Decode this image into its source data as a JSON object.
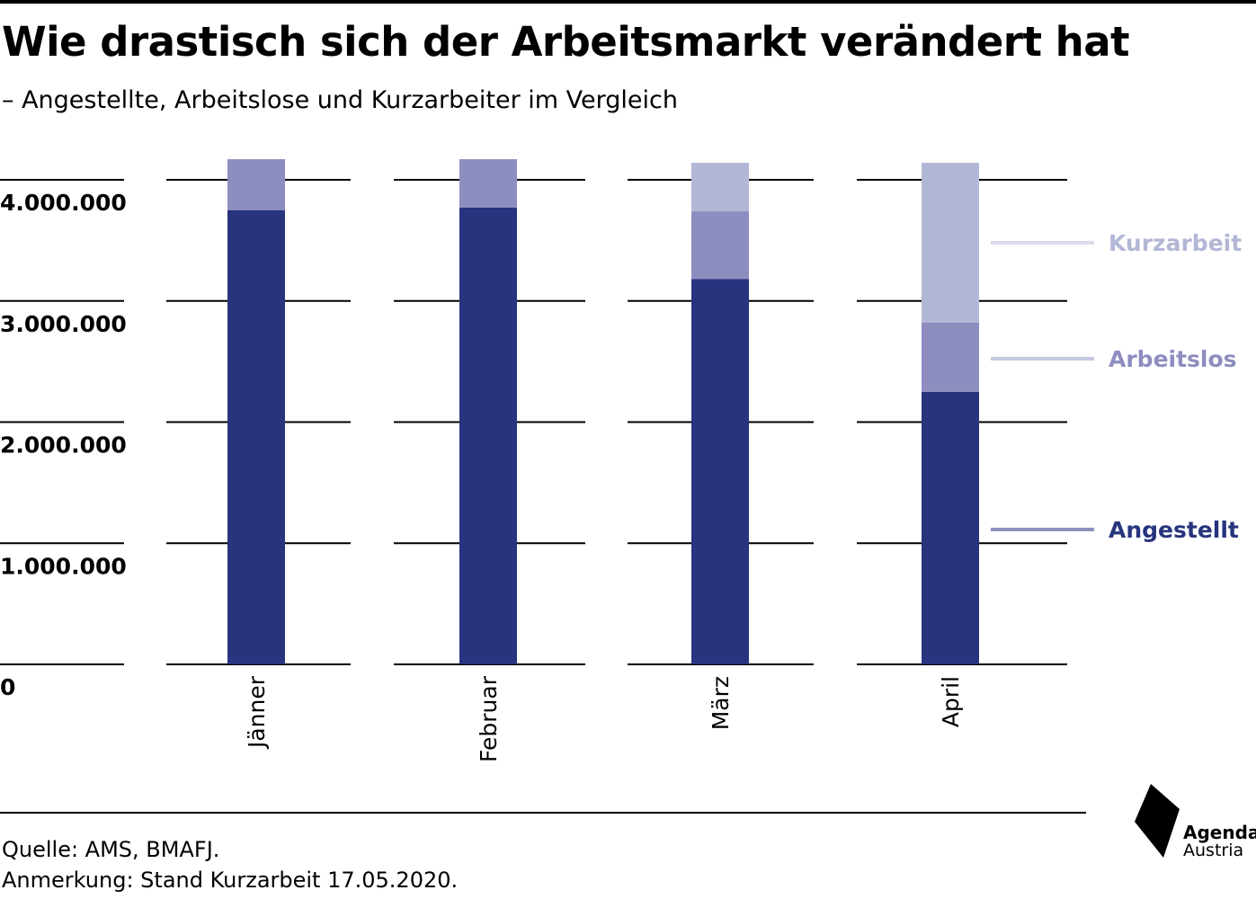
{
  "header": {
    "title": "Wie drastisch sich der Arbeitsmarkt verändert hat",
    "subtitle": "– Angestellte, Arbeitslose und Kurzarbeiter im Vergleich"
  },
  "footer": {
    "source": "Quelle: AMS, BMAFJ.",
    "note": "Anmerkung: Stand Kurzarbeit 17.05.2020."
  },
  "logo": {
    "line1": "Agenda",
    "line2": "Austria"
  },
  "colors": {
    "angestellt": "#27347e",
    "arbeitslos": "#8e8dc0",
    "kurzarbeit": "#b3b7d6",
    "legend_angestellt_text": "#27347e",
    "legend_arbeitslos_text": "#8e8dc0",
    "legend_kurzarbeit_text": "#b3b7d6"
  },
  "chart_data": {
    "type": "bar",
    "stacked": true,
    "orientation": "vertical",
    "categories": [
      "Jänner",
      "Februar",
      "März",
      "April"
    ],
    "series": [
      {
        "name": "Angestellt",
        "values": [
          3750000,
          3770000,
          3180000,
          2250000
        ]
      },
      {
        "name": "Arbeitslos",
        "values": [
          420000,
          400000,
          560000,
          570000
        ]
      },
      {
        "name": "Kurzarbeit",
        "values": [
          0,
          0,
          400000,
          1320000
        ]
      }
    ],
    "ylim": [
      0,
      4000000
    ],
    "yticks": [
      {
        "value": 0,
        "label": "0"
      },
      {
        "value": 1000000,
        "label": "1.000.000"
      },
      {
        "value": 2000000,
        "label": "2.000.000"
      },
      {
        "value": 3000000,
        "label": "3.000.000"
      },
      {
        "value": 4000000,
        "label": "4.000.000"
      }
    ],
    "grid": true,
    "legend": "right, inline labels",
    "xlabel": "",
    "ylabel": ""
  }
}
